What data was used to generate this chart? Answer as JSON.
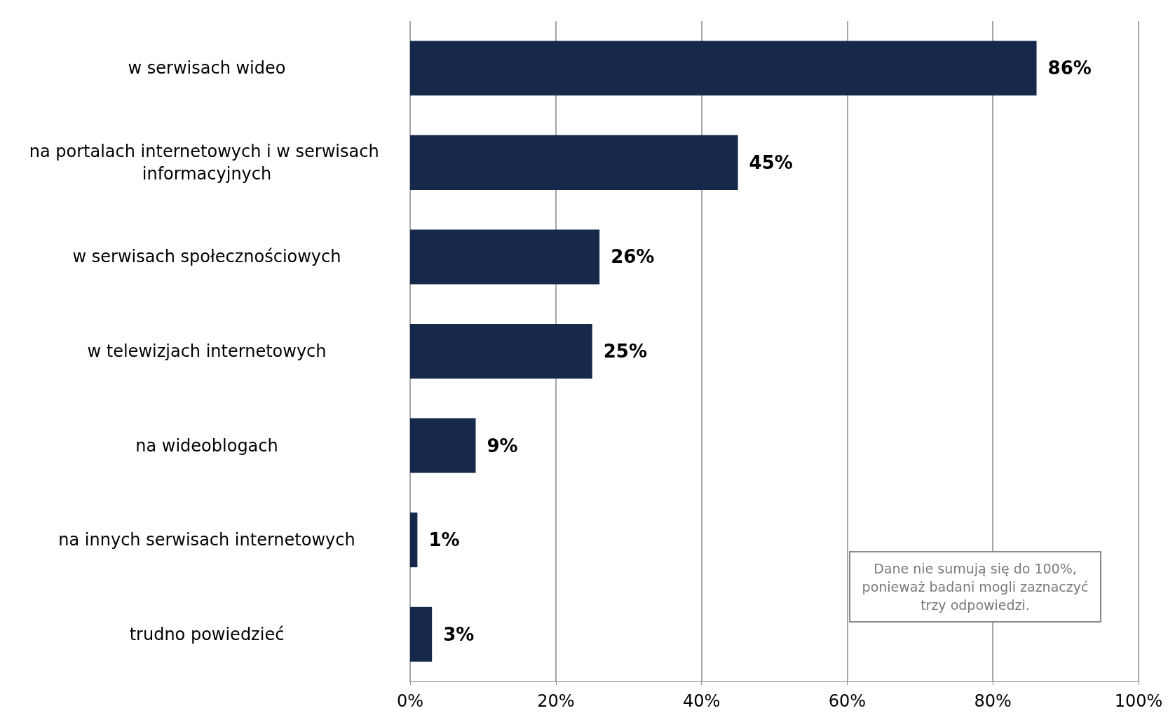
{
  "chart_data": {
    "type": "bar",
    "orientation": "horizontal",
    "categories": [
      "w serwisach wideo",
      "na portalach internetowych i w serwisach informacyjnych",
      "w serwisach społecznościowych",
      "w telewizjach internetowych",
      "na wideoblogach",
      "na innych serwisach internetowych",
      "trudno powiedzieć"
    ],
    "values": [
      86,
      45,
      26,
      25,
      9,
      1,
      3
    ],
    "value_labels": [
      "86%",
      "45%",
      "26%",
      "25%",
      "9%",
      "1%",
      "3%"
    ],
    "color": "#16294a",
    "xlim": [
      0,
      100
    ],
    "xticks": [
      {
        "value": 0,
        "label": "0%"
      },
      {
        "value": 20,
        "label": "20%"
      },
      {
        "value": 40,
        "label": "40%"
      },
      {
        "value": 60,
        "label": "60%"
      },
      {
        "value": 80,
        "label": "80%"
      },
      {
        "value": 100,
        "label": "100%"
      }
    ],
    "grid": "x",
    "annotations": [
      "Dane nie sumują się do 100%, ponieważ badani mogli zaznaczyć trzy odpowiedzi."
    ]
  }
}
